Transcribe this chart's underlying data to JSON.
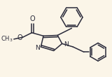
{
  "bg_color": "#fbf5e8",
  "bond_color": "#2a2a3a",
  "bond_width": 1.1,
  "figsize": [
    1.6,
    1.1
  ],
  "dpi": 100,
  "xlim": [
    0,
    160
  ],
  "ylim": [
    0,
    110
  ]
}
